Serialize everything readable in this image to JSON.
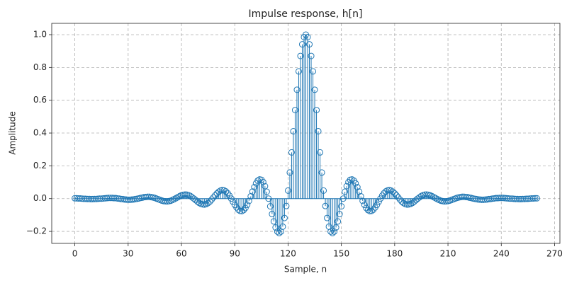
{
  "chart_data": {
    "type": "stem",
    "title": "Impulse response, h[n]",
    "x_label": "Sample, n",
    "y_label": "Amplitude",
    "color": "#1f77b4",
    "grid": true,
    "xlim": [
      -13,
      273
    ],
    "ylim": [
      -0.273,
      1.069
    ],
    "xticks": [
      0,
      30,
      60,
      90,
      120,
      150,
      180,
      210,
      240,
      270
    ],
    "yticks": [
      {
        "value": -0.2,
        "label": "−0.2"
      },
      {
        "value": 0,
        "label": "0.0"
      },
      0.2,
      0.4,
      0.6,
      0.8,
      {
        "value": 1,
        "label": "1.0"
      }
    ],
    "x": [
      0,
      1,
      2,
      3,
      4,
      5,
      6,
      7,
      8,
      9,
      10,
      11,
      12,
      13,
      14,
      15,
      16,
      17,
      18,
      19,
      20,
      21,
      22,
      23,
      24,
      25,
      26,
      27,
      28,
      29,
      30,
      31,
      32,
      33,
      34,
      35,
      36,
      37,
      38,
      39,
      40,
      41,
      42,
      43,
      44,
      45,
      46,
      47,
      48,
      49,
      50,
      51,
      52,
      53,
      54,
      55,
      56,
      57,
      58,
      59,
      60,
      61,
      62,
      63,
      64,
      65,
      66,
      67,
      68,
      69,
      70,
      71,
      72,
      73,
      74,
      75,
      76,
      77,
      78,
      79,
      80,
      81,
      82,
      83,
      84,
      85,
      86,
      87,
      88,
      89,
      90,
      91,
      92,
      93,
      94,
      95,
      96,
      97,
      98,
      99,
      100,
      101,
      102,
      103,
      104,
      105,
      106,
      107,
      108,
      109,
      110,
      111,
      112,
      113,
      114,
      115,
      116,
      117,
      118,
      119,
      120,
      121,
      122,
      123,
      124,
      125,
      126,
      127,
      128,
      129,
      130,
      131,
      132,
      133,
      134,
      135,
      136,
      137,
      138,
      139,
      140,
      141,
      142,
      143,
      144,
      145,
      146,
      147,
      148,
      149,
      150,
      151,
      152,
      153,
      154,
      155,
      156,
      157,
      158,
      159,
      160,
      161,
      162,
      163,
      164,
      165,
      166,
      167,
      168,
      169,
      170,
      171,
      172,
      173,
      174,
      175,
      176,
      177,
      178,
      179,
      180,
      181,
      182,
      183,
      184,
      185,
      186,
      187,
      188,
      189,
      190,
      191,
      192,
      193,
      194,
      195,
      196,
      197,
      198,
      199,
      200,
      201,
      202,
      203,
      204,
      205,
      206,
      207,
      208,
      209,
      210,
      211,
      212,
      213,
      214,
      215,
      216,
      217,
      218,
      219,
      220,
      221,
      222,
      223,
      224,
      225,
      226,
      227,
      228,
      229,
      230,
      231,
      232,
      233,
      234,
      235,
      236,
      237,
      238,
      239,
      240,
      241,
      242,
      243,
      244,
      245,
      246,
      247,
      248,
      249,
      250,
      251,
      252,
      253,
      254,
      255,
      256,
      257,
      258,
      259,
      260
    ],
    "values": [
      0.002,
      0.002,
      0.001,
      0.001,
      0,
      -0.001,
      -0.001,
      -0.002,
      -0.002,
      -0.003,
      -0.003,
      -0.002,
      -0.002,
      -0.001,
      0,
      0,
      0.001,
      0.002,
      0.003,
      0.004,
      0.004,
      0.004,
      0.003,
      0.003,
      0.001,
      0,
      -0.002,
      -0.003,
      -0.005,
      -0.006,
      -0.007,
      -0.007,
      -0.006,
      -0.005,
      -0.003,
      -0.001,
      0.001,
      0.004,
      0.006,
      0.009,
      0.01,
      0.011,
      0.011,
      0.009,
      0.007,
      0.004,
      0,
      -0.004,
      -0.008,
      -0.012,
      -0.015,
      -0.016,
      -0.017,
      -0.015,
      -0.013,
      -0.008,
      -0.003,
      0.003,
      0.009,
      0.015,
      0.02,
      0.023,
      0.025,
      0.024,
      0.021,
      0.016,
      0.008,
      0,
      -0.009,
      -0.018,
      -0.026,
      -0.032,
      -0.035,
      -0.036,
      -0.033,
      -0.027,
      -0.018,
      -0.006,
      0.007,
      0.02,
      0.032,
      0.042,
      0.049,
      0.052,
      0.05,
      0.044,
      0.033,
      0.018,
      0,
      -0.019,
      -0.038,
      -0.054,
      -0.068,
      -0.075,
      -0.076,
      -0.07,
      -0.057,
      -0.038,
      -0.014,
      0.014,
      0.043,
      0.07,
      0.093,
      0.11,
      0.117,
      0.115,
      0.101,
      0.076,
      0.042,
      0,
      -0.047,
      -0.094,
      -0.139,
      -0.176,
      -0.201,
      -0.21,
      -0.201,
      -0.171,
      -0.118,
      -0.045,
      0.049,
      0.159,
      0.282,
      0.411,
      0.54,
      0.664,
      0.776,
      0.87,
      0.941,
      0.985,
      1,
      0.985,
      0.941,
      0.87,
      0.776,
      0.664,
      0.54,
      0.411,
      0.282,
      0.159,
      0.049,
      -0.045,
      -0.118,
      -0.171,
      -0.201,
      -0.21,
      -0.201,
      -0.176,
      -0.139,
      -0.094,
      -0.047,
      0,
      0.042,
      0.076,
      0.101,
      0.115,
      0.117,
      0.11,
      0.093,
      0.07,
      0.043,
      0.014,
      -0.014,
      -0.038,
      -0.057,
      -0.07,
      -0.076,
      -0.075,
      -0.068,
      -0.054,
      -0.038,
      -0.019,
      0,
      0.018,
      0.033,
      0.044,
      0.05,
      0.052,
      0.049,
      0.042,
      0.032,
      0.02,
      0.007,
      -0.006,
      -0.018,
      -0.027,
      -0.033,
      -0.036,
      -0.035,
      -0.032,
      -0.026,
      -0.018,
      -0.009,
      0,
      0.008,
      0.016,
      0.021,
      0.024,
      0.025,
      0.023,
      0.02,
      0.015,
      0.009,
      0.003,
      -0.003,
      -0.008,
      -0.013,
      -0.015,
      -0.017,
      -0.016,
      -0.015,
      -0.012,
      -0.008,
      -0.004,
      0,
      0.004,
      0.007,
      0.009,
      0.011,
      0.011,
      0.01,
      0.009,
      0.006,
      0.004,
      0.001,
      -0.001,
      -0.003,
      -0.005,
      -0.006,
      -0.007,
      -0.007,
      -0.006,
      -0.005,
      -0.003,
      -0.002,
      0,
      0.001,
      0.003,
      0.003,
      0.004,
      0.004,
      0.004,
      0.003,
      0.002,
      0.001,
      0,
      0,
      -0.001,
      -0.002,
      -0.002,
      -0.003,
      -0.003,
      -0.002,
      -0.002,
      -0.001,
      -0.001,
      0,
      0.001,
      0.001,
      0.002,
      0.002
    ]
  }
}
